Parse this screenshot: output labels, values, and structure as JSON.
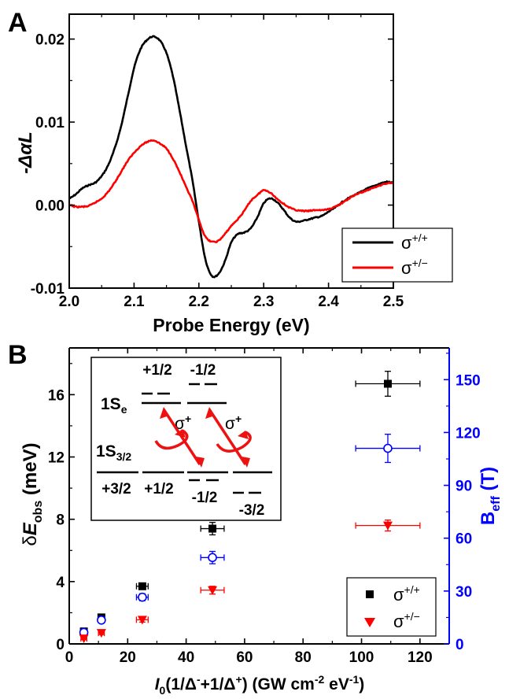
{
  "colors": {
    "black": "#000000",
    "red": "#ff0000",
    "blue": "#0000ff",
    "inset_arrow": "#ee1111"
  },
  "panel_a": {
    "letter": "A",
    "xlabel": "Probe Energy (eV)",
    "ylabel": "-ΔαL",
    "legend": [
      {
        "label": "σ+/+",
        "base": "σ",
        "sup": "+/+",
        "color": "#000000"
      },
      {
        "label": "σ+/−",
        "base": "σ",
        "sup": "+/−",
        "color": "#ff0000"
      }
    ]
  },
  "panel_b": {
    "letter": "B",
    "xlabel_parts": {
      "I": "I",
      "sub0": "0",
      "rest1": "(1/Δ",
      "supminus": "-",
      "rest2": "+1/Δ",
      "supplus": "+",
      "rest3": ") (GW cm",
      "supexp1": "-2",
      "rest4": " eV",
      "supexp2": "-1",
      "rest5": ")"
    },
    "ylabel_parts": {
      "delta": "δ",
      "E": "E",
      "sub": "obs",
      "unit": " (meV)"
    },
    "ylabel2_parts": {
      "B": "B",
      "sub": "eff",
      "unit": " (T)"
    },
    "legend": [
      {
        "label": "σ+/+",
        "base": "σ",
        "sup": "+/+",
        "marker": "square",
        "color": "#000000"
      },
      {
        "label": "σ+/−",
        "base": "σ",
        "sup": "+/−",
        "marker": "triangle-down",
        "color": "#ff0000"
      }
    ],
    "inset": {
      "level_1Se": "1S",
      "level_1Se_sub": "e",
      "level_1S32": "1S",
      "level_1S32_sub": "3/2",
      "labels_top": [
        "+1/2",
        "-1/2"
      ],
      "labels_bottom": [
        "+3/2",
        "+1/2",
        "-1/2",
        "-3/2"
      ],
      "sigma": "σ",
      "sigma_sup": "+"
    }
  },
  "chart_data": [
    {
      "type": "line",
      "title": "",
      "xlabel": "Probe Energy (eV)",
      "ylabel": "-ΔαL",
      "xlim": [
        2.0,
        2.5
      ],
      "ylim": [
        -0.01,
        0.023
      ],
      "xticks": [
        2.0,
        2.1,
        2.2,
        2.3,
        2.4,
        2.5
      ],
      "yticks": [
        -0.01,
        0.0,
        0.01,
        0.02
      ],
      "xtick_labels": [
        "2.0",
        "2.1",
        "2.2",
        "2.3",
        "2.4",
        "2.5"
      ],
      "ytick_labels": [
        "-0.01",
        "0.00",
        "0.01",
        "0.02"
      ],
      "legend_position": "bottom-right",
      "series": [
        {
          "name": "σ+/+",
          "color": "#000000",
          "x": [
            2.0,
            2.01,
            2.02,
            2.03,
            2.04,
            2.05,
            2.06,
            2.07,
            2.08,
            2.09,
            2.1,
            2.11,
            2.12,
            2.13,
            2.14,
            2.15,
            2.16,
            2.17,
            2.18,
            2.19,
            2.2,
            2.21,
            2.22,
            2.23,
            2.24,
            2.25,
            2.26,
            2.27,
            2.28,
            2.29,
            2.3,
            2.31,
            2.32,
            2.33,
            2.34,
            2.35,
            2.36,
            2.37,
            2.38,
            2.39,
            2.4,
            2.41,
            2.42,
            2.43,
            2.44,
            2.45,
            2.46,
            2.47,
            2.48,
            2.49,
            2.5
          ],
          "y": [
            0.0008,
            0.0013,
            0.002,
            0.0024,
            0.0027,
            0.0035,
            0.0048,
            0.0068,
            0.0095,
            0.013,
            0.0165,
            0.0188,
            0.0199,
            0.0203,
            0.0198,
            0.0183,
            0.0155,
            0.0115,
            0.0072,
            0.003,
            -0.002,
            -0.0065,
            -0.0085,
            -0.0083,
            -0.0068,
            -0.0045,
            -0.0035,
            -0.0033,
            -0.0028,
            -0.0015,
            0.0002,
            0.0008,
            0.0004,
            -0.0005,
            -0.0015,
            -0.002,
            -0.0019,
            -0.0017,
            -0.0015,
            -0.0013,
            -0.0008,
            -0.0003,
            0.0003,
            0.0008,
            0.0012,
            0.0016,
            0.002,
            0.0023,
            0.0026,
            0.0028,
            0.0027
          ]
        },
        {
          "name": "σ+/−",
          "color": "#ff0000",
          "x": [
            2.0,
            2.01,
            2.02,
            2.03,
            2.04,
            2.05,
            2.06,
            2.07,
            2.08,
            2.09,
            2.1,
            2.11,
            2.12,
            2.13,
            2.14,
            2.15,
            2.16,
            2.17,
            2.18,
            2.19,
            2.2,
            2.21,
            2.22,
            2.23,
            2.24,
            2.25,
            2.26,
            2.27,
            2.28,
            2.29,
            2.3,
            2.31,
            2.32,
            2.33,
            2.34,
            2.35,
            2.36,
            2.37,
            2.38,
            2.39,
            2.4,
            2.41,
            2.42,
            2.43,
            2.44,
            2.45,
            2.46,
            2.47,
            2.48,
            2.49,
            2.5
          ],
          "y": [
            0.0,
            -0.0002,
            -0.0002,
            -0.0001,
            0.0003,
            0.0008,
            0.0016,
            0.0027,
            0.004,
            0.0053,
            0.0063,
            0.0071,
            0.0076,
            0.0078,
            0.0074,
            0.0068,
            0.0056,
            0.004,
            0.0022,
            0.0005,
            -0.0018,
            -0.0038,
            -0.0044,
            -0.0043,
            -0.0035,
            -0.0025,
            -0.0017,
            -0.0007,
            0.0005,
            0.0012,
            0.0018,
            0.0015,
            0.0008,
            0.0002,
            -0.0003,
            -0.0006,
            -0.0007,
            -0.0007,
            -0.0006,
            -0.0006,
            -0.0005,
            -0.0002,
            0.0002,
            0.0007,
            0.0012,
            0.0015,
            0.0018,
            0.0021,
            0.0024,
            0.0026,
            0.0027
          ]
        }
      ]
    },
    {
      "type": "scatter",
      "title": "",
      "xlim": [
        0,
        130
      ],
      "ylim": [
        0,
        19
      ],
      "y2lim": [
        0,
        168
      ],
      "xticks": [
        0,
        20,
        40,
        60,
        80,
        100,
        120
      ],
      "yticks": [
        0,
        4,
        8,
        12,
        16
      ],
      "y2ticks": [
        0,
        30,
        60,
        90,
        120,
        150
      ],
      "xtick_labels": [
        "0",
        "20",
        "40",
        "60",
        "80",
        "100",
        "120"
      ],
      "ytick_labels": [
        "0",
        "4",
        "8",
        "12",
        "16"
      ],
      "y2tick_labels": [
        "0",
        "30",
        "60",
        "90",
        "120",
        "150"
      ],
      "legend_position": "bottom-right",
      "series": [
        {
          "name": "σ+/+",
          "axis": "left",
          "marker": "square",
          "color": "#000000",
          "x": [
            5,
            11,
            25,
            49,
            109
          ],
          "y": [
            0.8,
            1.7,
            3.7,
            7.4,
            16.7
          ],
          "xerr": [
            1,
            1,
            2,
            4,
            11
          ],
          "yerr": [
            0.1,
            0.15,
            0.2,
            0.4,
            0.8
          ]
        },
        {
          "name": "B_eff",
          "axis": "right",
          "marker": "open-circle",
          "color": "#0000ff",
          "x": [
            5,
            11,
            25,
            49,
            109
          ],
          "y": [
            6.5,
            13.5,
            26.5,
            49,
            111
          ],
          "xerr": [
            1,
            1,
            2,
            4,
            11
          ],
          "yerr": [
            1,
            1.5,
            2,
            3.5,
            8
          ]
        },
        {
          "name": "σ+/−",
          "axis": "left",
          "marker": "triangle-down",
          "color": "#ff0000",
          "x": [
            5,
            11,
            25,
            49,
            109
          ],
          "y": [
            0.35,
            0.7,
            1.55,
            3.45,
            7.6
          ],
          "xerr": [
            1,
            1,
            2,
            4,
            11
          ],
          "yerr": [
            0.08,
            0.1,
            0.15,
            0.25,
            0.35
          ]
        }
      ]
    }
  ]
}
